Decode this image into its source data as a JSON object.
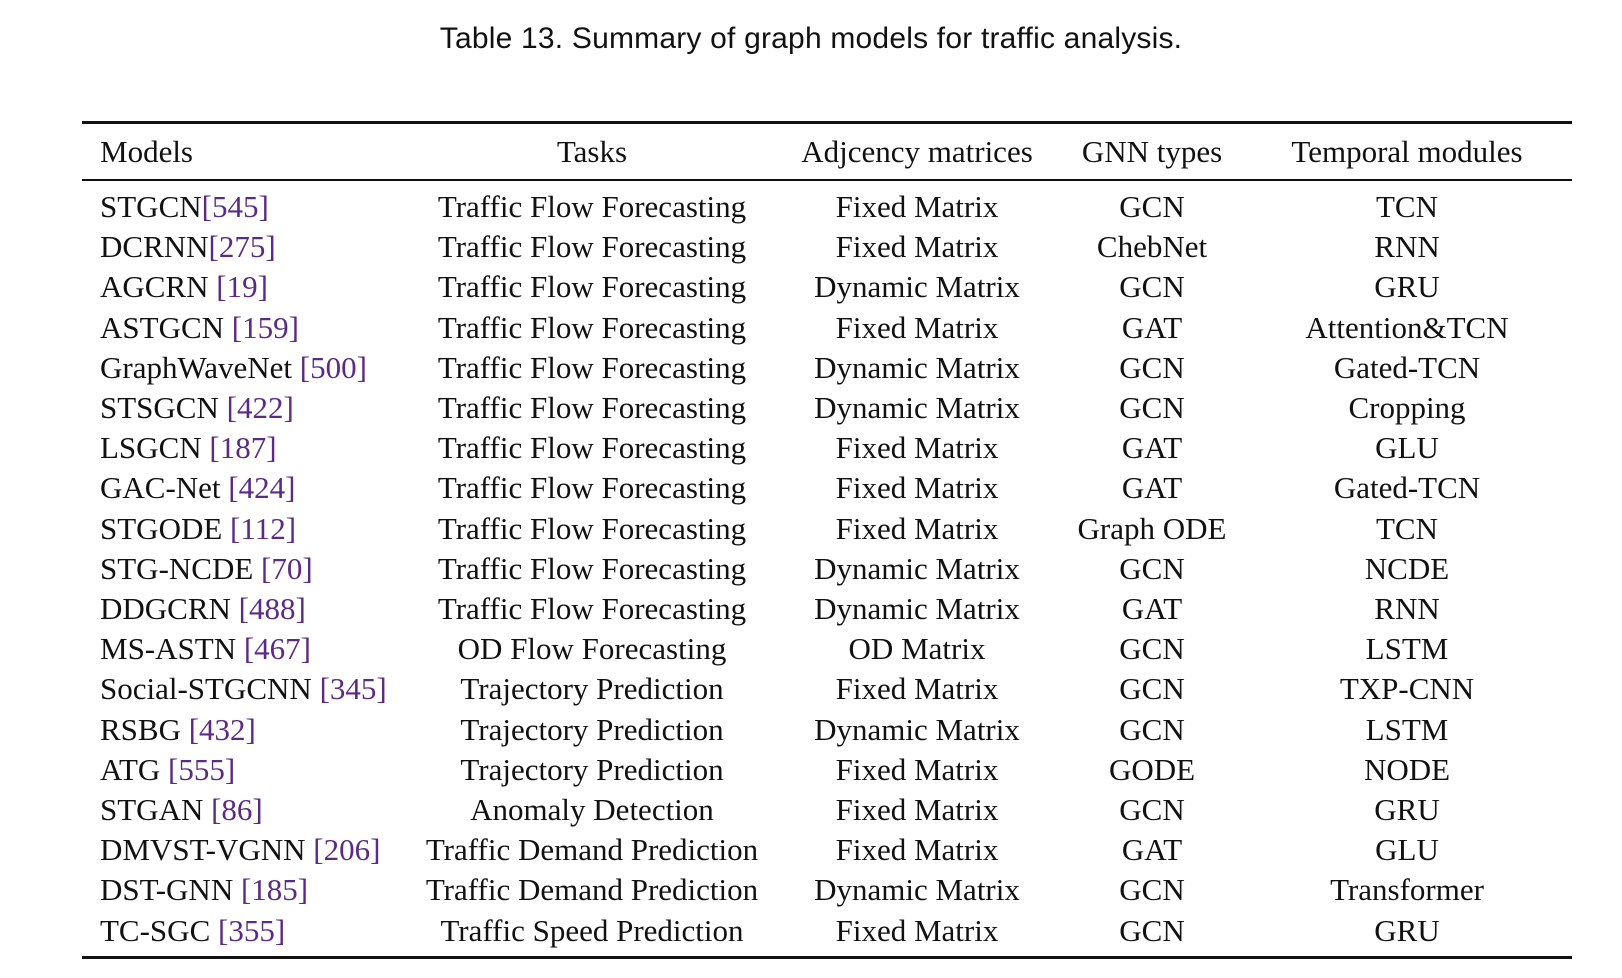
{
  "caption": "Table 13.  Summary of graph models for traffic analysis.",
  "columns": [
    "Models",
    "Tasks",
    "Adjcency matrices",
    "GNN types",
    "Temporal modules"
  ],
  "rows": [
    {
      "model": "STGCN",
      "ref": "[545]",
      "task": "Traffic Flow Forecasting",
      "matrix": "Fixed Matrix",
      "gnn": "GCN",
      "temporal": "TCN"
    },
    {
      "model": "DCRNN",
      "ref": "[275]",
      "task": "Traffic Flow Forecasting",
      "matrix": "Fixed Matrix",
      "gnn": "ChebNet",
      "temporal": "RNN"
    },
    {
      "model": "AGCRN ",
      "ref": "[19]",
      "task": "Traffic Flow Forecasting",
      "matrix": "Dynamic Matrix",
      "gnn": "GCN",
      "temporal": "GRU"
    },
    {
      "model": "ASTGCN ",
      "ref": "[159]",
      "task": "Traffic Flow Forecasting",
      "matrix": "Fixed Matrix",
      "gnn": "GAT",
      "temporal": "Attention&TCN"
    },
    {
      "model": "GraphWaveNet ",
      "ref": "[500]",
      "task": "Traffic Flow Forecasting",
      "matrix": "Dynamic Matrix",
      "gnn": "GCN",
      "temporal": "Gated-TCN"
    },
    {
      "model": "STSGCN ",
      "ref": "[422]",
      "task": "Traffic Flow Forecasting",
      "matrix": "Dynamic Matrix",
      "gnn": "GCN",
      "temporal": "Cropping"
    },
    {
      "model": "LSGCN ",
      "ref": "[187]",
      "task": "Traffic Flow Forecasting",
      "matrix": "Fixed Matrix",
      "gnn": "GAT",
      "temporal": "GLU"
    },
    {
      "model": "GAC-Net ",
      "ref": "[424]",
      "task": "Traffic Flow Forecasting",
      "matrix": "Fixed Matrix",
      "gnn": "GAT",
      "temporal": "Gated-TCN"
    },
    {
      "model": "STGODE ",
      "ref": "[112]",
      "task": "Traffic Flow Forecasting",
      "matrix": "Fixed Matrix",
      "gnn": "Graph ODE",
      "temporal": "TCN"
    },
    {
      "model": "STG-NCDE ",
      "ref": "[70]",
      "task": "Traffic Flow Forecasting",
      "matrix": "Dynamic Matrix",
      "gnn": "GCN",
      "temporal": "NCDE"
    },
    {
      "model": "DDGCRN ",
      "ref": "[488]",
      "task": "Traffic Flow Forecasting",
      "matrix": "Dynamic Matrix",
      "gnn": "GAT",
      "temporal": "RNN"
    },
    {
      "model": "MS-ASTN ",
      "ref": "[467]",
      "task": "OD Flow Forecasting",
      "matrix": "OD Matrix",
      "gnn": "GCN",
      "temporal": "LSTM"
    },
    {
      "model": "Social-STGCNN ",
      "ref": "[345]",
      "task": "Trajectory Prediction",
      "matrix": "Fixed Matrix",
      "gnn": "GCN",
      "temporal": "TXP-CNN"
    },
    {
      "model": "RSBG ",
      "ref": "[432]",
      "task": "Trajectory Prediction",
      "matrix": "Dynamic Matrix",
      "gnn": "GCN",
      "temporal": "LSTM"
    },
    {
      "model": "ATG ",
      "ref": "[555]",
      "task": "Trajectory Prediction",
      "matrix": "Fixed Matrix",
      "gnn": "GODE",
      "temporal": "NODE"
    },
    {
      "model": "STGAN ",
      "ref": "[86]",
      "task": "Anomaly Detection",
      "matrix": "Fixed Matrix",
      "gnn": "GCN",
      "temporal": "GRU"
    },
    {
      "model": "DMVST-VGNN ",
      "ref": "[206]",
      "task": "Traffic Demand Prediction",
      "matrix": "Fixed Matrix",
      "gnn": "GAT",
      "temporal": "GLU"
    },
    {
      "model": "DST-GNN ",
      "ref": "[185]",
      "task": "Traffic Demand Prediction",
      "matrix": "Dynamic Matrix",
      "gnn": "GCN",
      "temporal": "Transformer"
    },
    {
      "model": "TC-SGC ",
      "ref": "[355]",
      "task": "Traffic Speed Prediction",
      "matrix": "Fixed Matrix",
      "gnn": "GCN",
      "temporal": "GRU"
    }
  ],
  "colors": {
    "text": "#111111",
    "citation": "#5b2a86"
  }
}
